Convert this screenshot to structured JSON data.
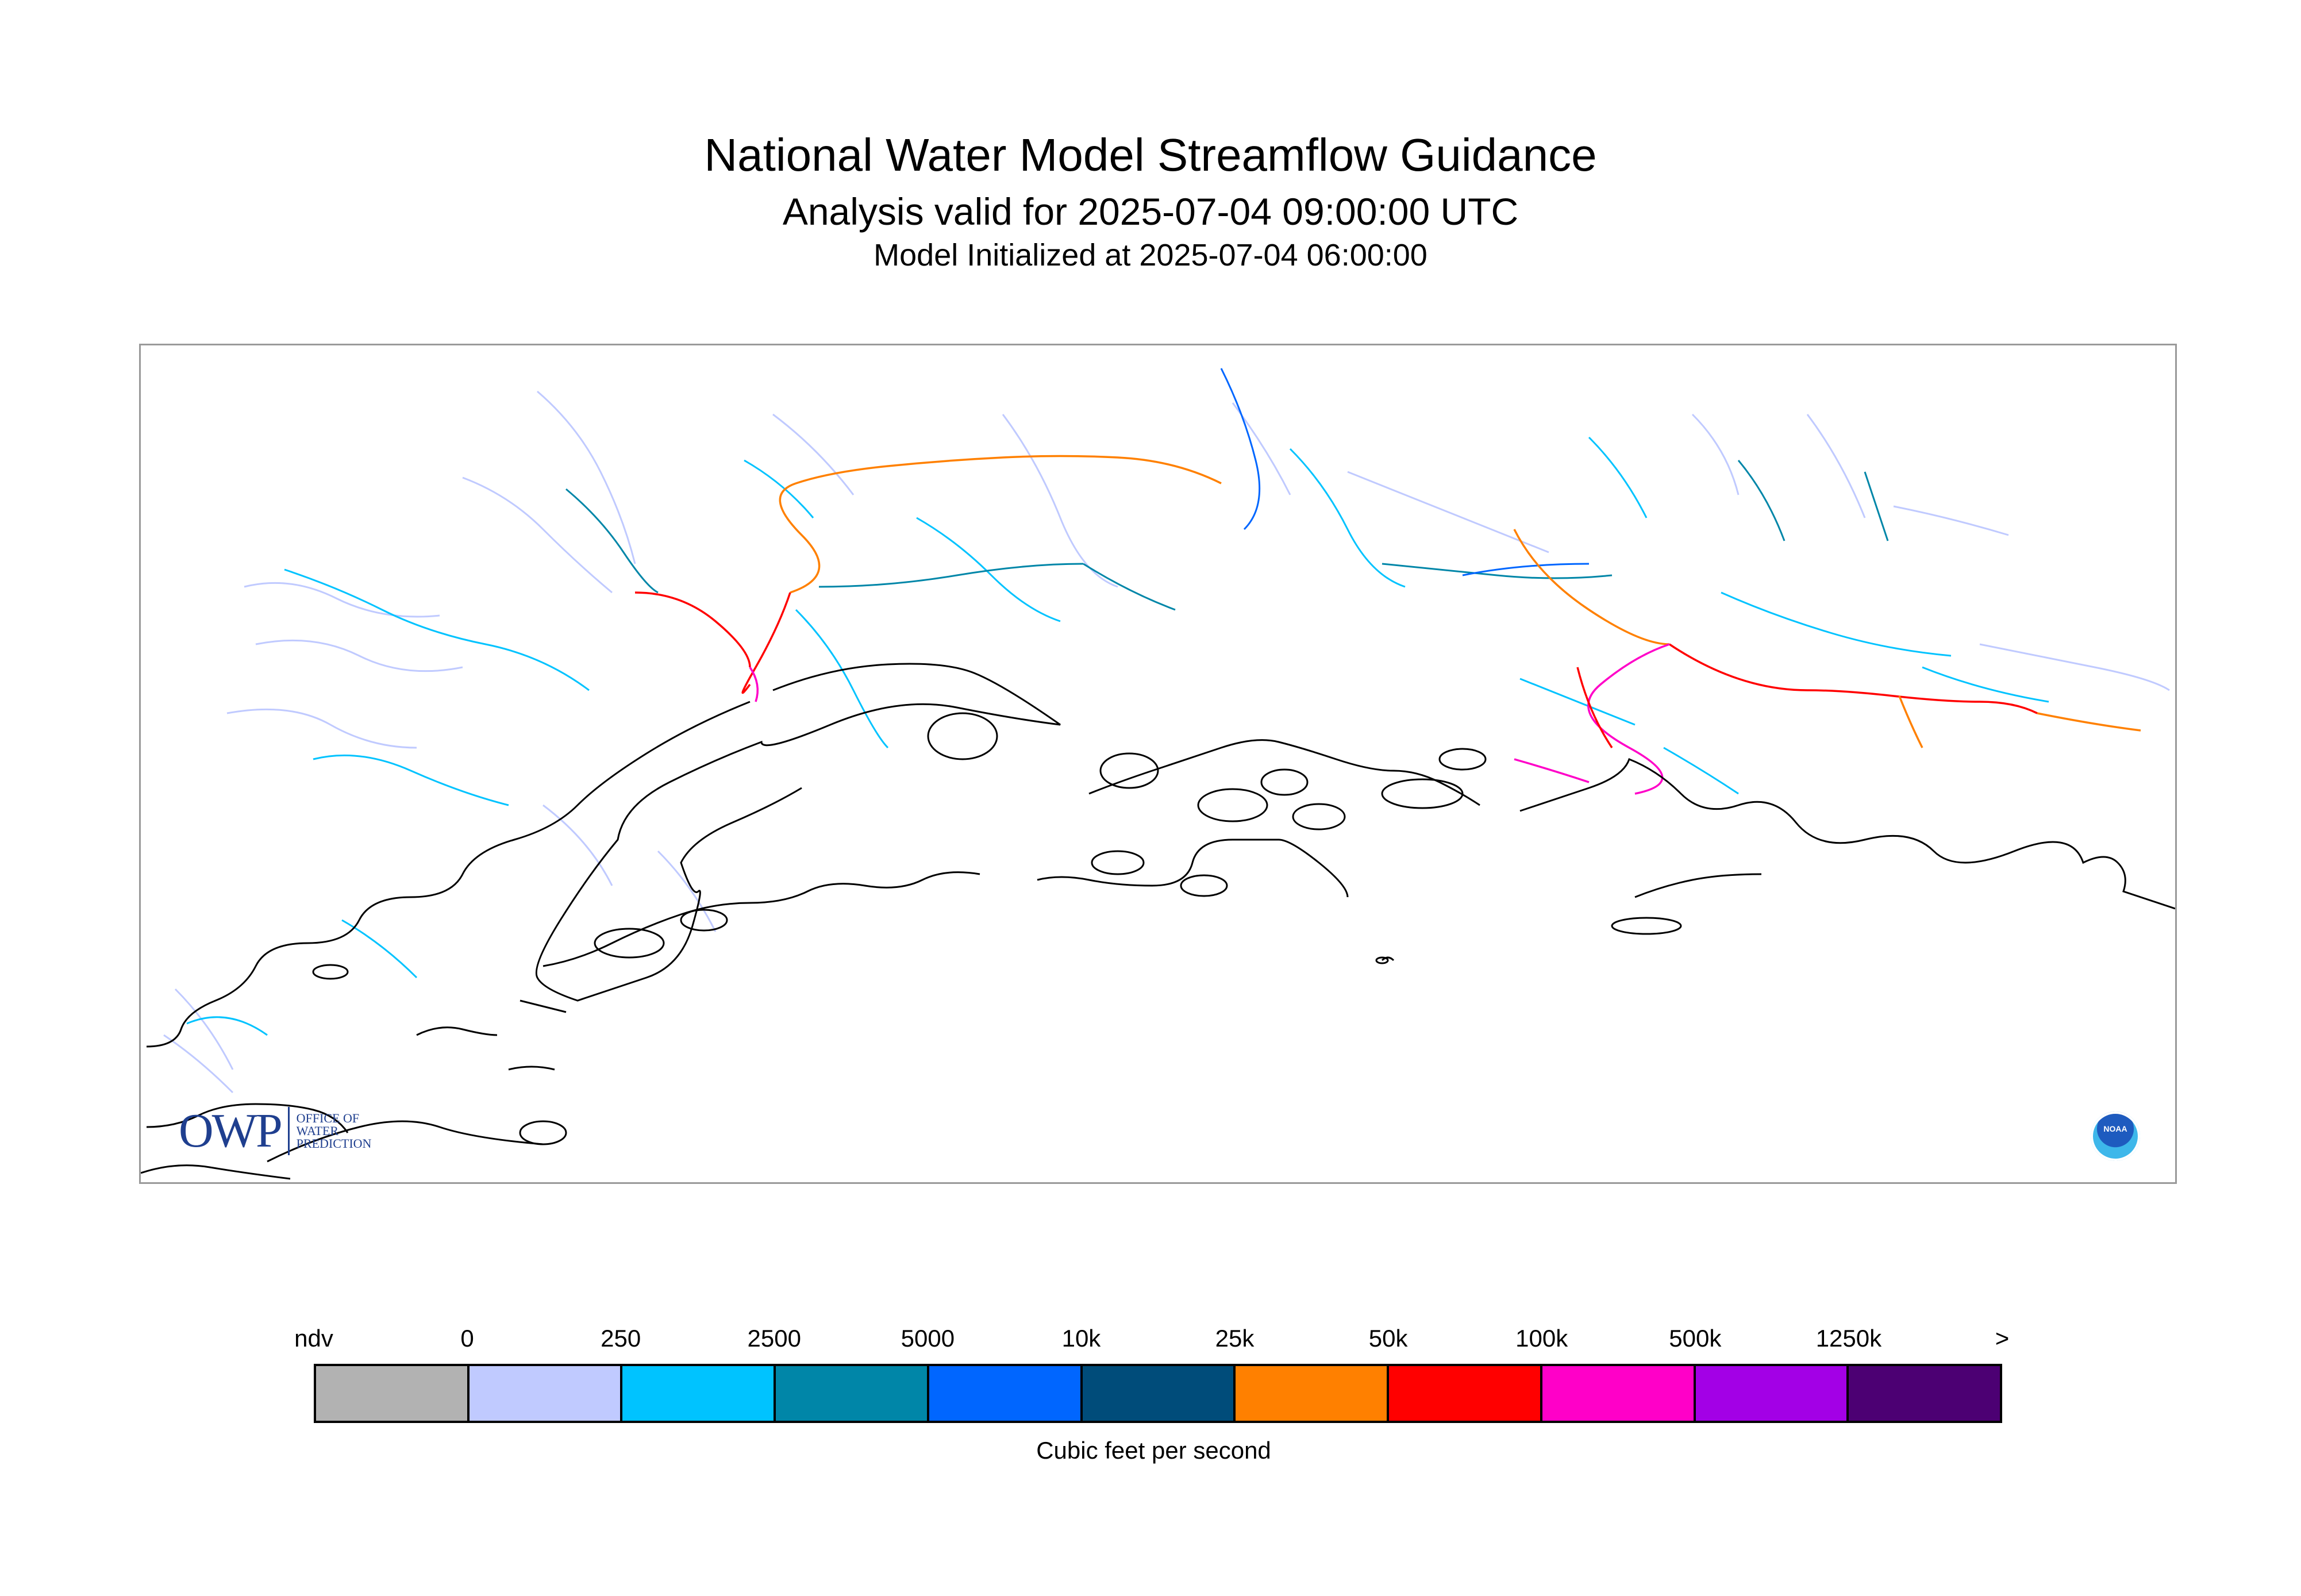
{
  "titles": {
    "main": "National Water Model Streamflow Guidance",
    "valid": "Analysis valid for 2025-07-04 09:00:00 UTC",
    "init": "Model Initialized at 2025-07-04 06:00:00"
  },
  "logos": {
    "owp_mark": "OWP",
    "owp_lines": [
      "OFFICE OF",
      "WATER",
      "PREDICTION"
    ],
    "noaa": "NOAA"
  },
  "legend": {
    "ticks": [
      "ndv",
      "0",
      "250",
      "2500",
      "5000",
      "10k",
      "25k",
      "50k",
      "100k",
      "500k",
      "1250k",
      ">"
    ],
    "colors": [
      "#b2b2b2",
      "#c0caff",
      "#00c3ff",
      "#0086a8",
      "#0066ff",
      "#004c7a",
      "#ff8000",
      "#ff0000",
      "#ff00c8",
      "#a300e6",
      "#4c0073"
    ],
    "units": "Cubic feet per second"
  },
  "map": {
    "coastline_color": "#000000",
    "stream_colors": [
      "#c0caff",
      "#00c3ff",
      "#0086a8",
      "#0066ff",
      "#ff8000",
      "#ff0000",
      "#ff00c8"
    ]
  }
}
